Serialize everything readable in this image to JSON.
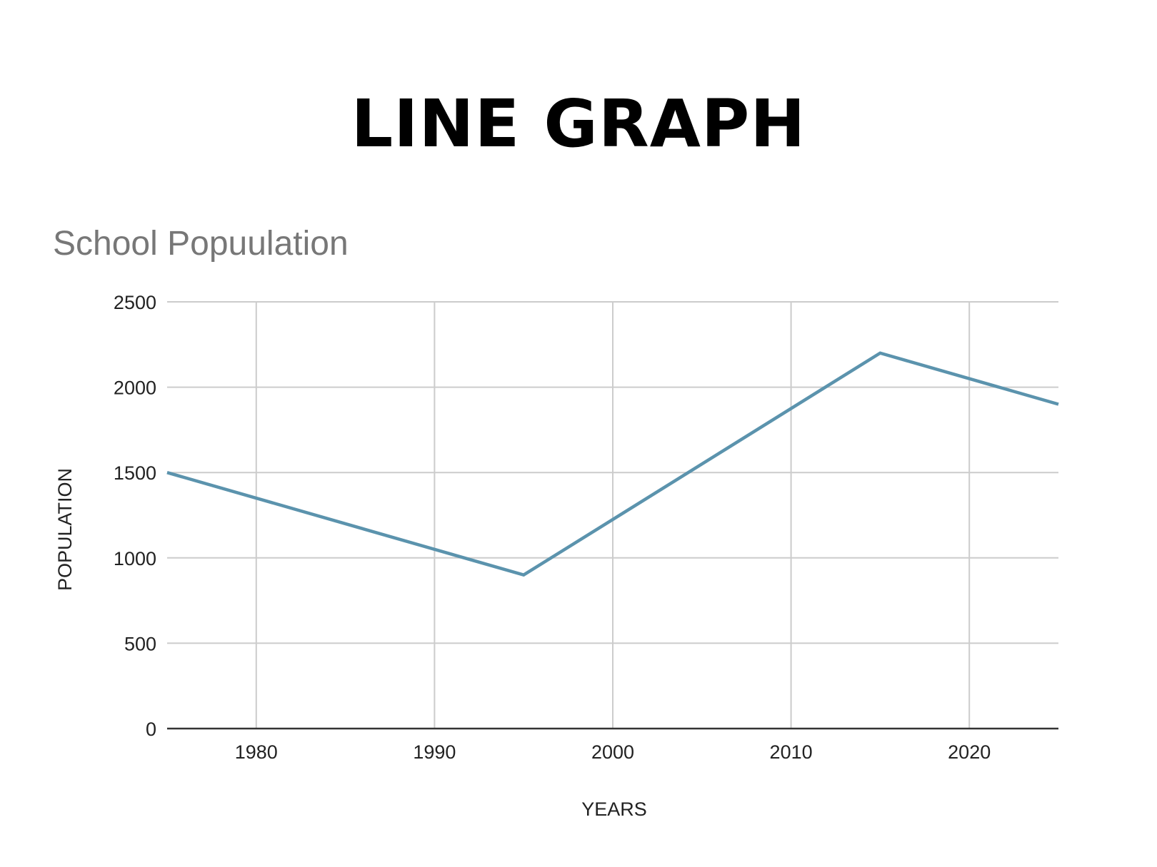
{
  "header": {
    "title": "LINE GRAPH"
  },
  "chart_data": {
    "type": "line",
    "title": "School Popuulation",
    "xlabel": "YEARS",
    "ylabel": "POPULATION",
    "xlim": [
      1975,
      2025
    ],
    "ylim": [
      0,
      2500
    ],
    "x_ticks": [
      1980,
      1990,
      2000,
      2010,
      2020
    ],
    "y_ticks": [
      0,
      500,
      1000,
      1500,
      2000,
      2500
    ],
    "grid": true,
    "legend": "none",
    "series": [
      {
        "x": [
          1975,
          1995,
          2015,
          2025
        ],
        "values": [
          1500,
          900,
          2200,
          1900
        ],
        "color": "#5b93ad"
      }
    ],
    "colors": {
      "grid": "#cccccc",
      "baseline": "#333333",
      "title": "#777777"
    }
  }
}
